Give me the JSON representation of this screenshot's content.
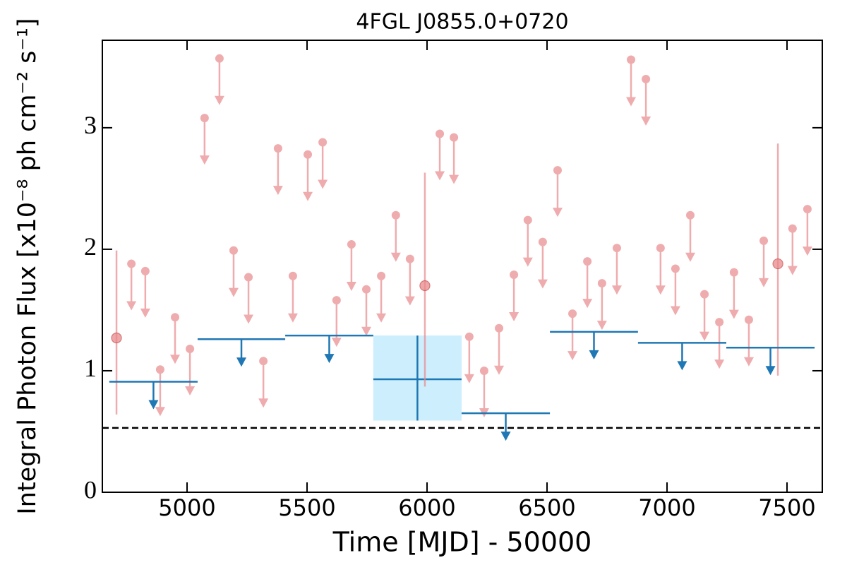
{
  "chart_data": {
    "type": "lightcurve",
    "title": "4FGL J0855.0+0720",
    "xlabel": "Time [MJD] - 50000",
    "ylabel": "Integral Photon Flux [x10⁻⁸ ph cm⁻² s⁻¹]",
    "xlim": [
      4647,
      7647
    ],
    "ylim": [
      0,
      3.72
    ],
    "xticks": [
      5000,
      5500,
      6000,
      6500,
      7000,
      7500
    ],
    "yticks": [
      0,
      1,
      2,
      3
    ],
    "baseline": 0.53,
    "series": [
      {
        "kind": "upper_limit",
        "color": "#e9898c",
        "x": [
          4768,
          4826,
          4888,
          4950,
          5012,
          5073,
          5135,
          5194,
          5256,
          5318,
          5379,
          5441,
          5503,
          5565,
          5623,
          5685,
          5747,
          5809,
          5870,
          5929,
          6053,
          6112,
          6176,
          6238,
          6300,
          6362,
          6420,
          6482,
          6544,
          6606,
          6668,
          6729,
          6791,
          6850,
          6912,
          6973,
          7035,
          7097,
          7156,
          7218,
          7279,
          7341,
          7403,
          7523,
          7585
        ],
        "values": [
          1.88,
          1.82,
          1.01,
          1.44,
          1.18,
          3.08,
          3.57,
          1.99,
          1.77,
          1.08,
          2.83,
          1.78,
          2.78,
          2.88,
          1.58,
          2.04,
          1.67,
          1.78,
          2.28,
          1.92,
          2.95,
          2.92,
          1.28,
          1.0,
          1.35,
          1.79,
          2.24,
          2.06,
          2.65,
          1.47,
          1.9,
          1.72,
          2.01,
          3.56,
          3.4,
          2.01,
          1.84,
          2.28,
          1.63,
          1.4,
          1.81,
          1.42,
          2.07,
          2.17,
          2.33
        ]
      },
      {
        "kind": "detection",
        "color": "#e9898c",
        "x": [
          4706,
          5991,
          7462
        ],
        "values": [
          1.27,
          1.7,
          1.88
        ],
        "low": [
          0.64,
          0.87,
          0.96
        ],
        "high": [
          1.99,
          2.63,
          2.87
        ]
      },
      {
        "kind": "binned_upper_limit",
        "color": "#1f77b4",
        "x_start": [
          4676,
          5044,
          5409,
          6144,
          6512,
          6879,
          7247
        ],
        "x_end": [
          5044,
          5409,
          5776,
          6512,
          6879,
          7247,
          7615
        ],
        "values": [
          0.91,
          1.26,
          1.29,
          0.65,
          1.32,
          1.23,
          1.19
        ]
      },
      {
        "kind": "binned_detection",
        "color": "#1f77b4",
        "fill": "#cdeefd",
        "x_start": [
          5776
        ],
        "x_end": [
          6144
        ],
        "values": [
          0.93
        ],
        "low": [
          0.59
        ],
        "high": [
          1.29
        ]
      }
    ]
  }
}
